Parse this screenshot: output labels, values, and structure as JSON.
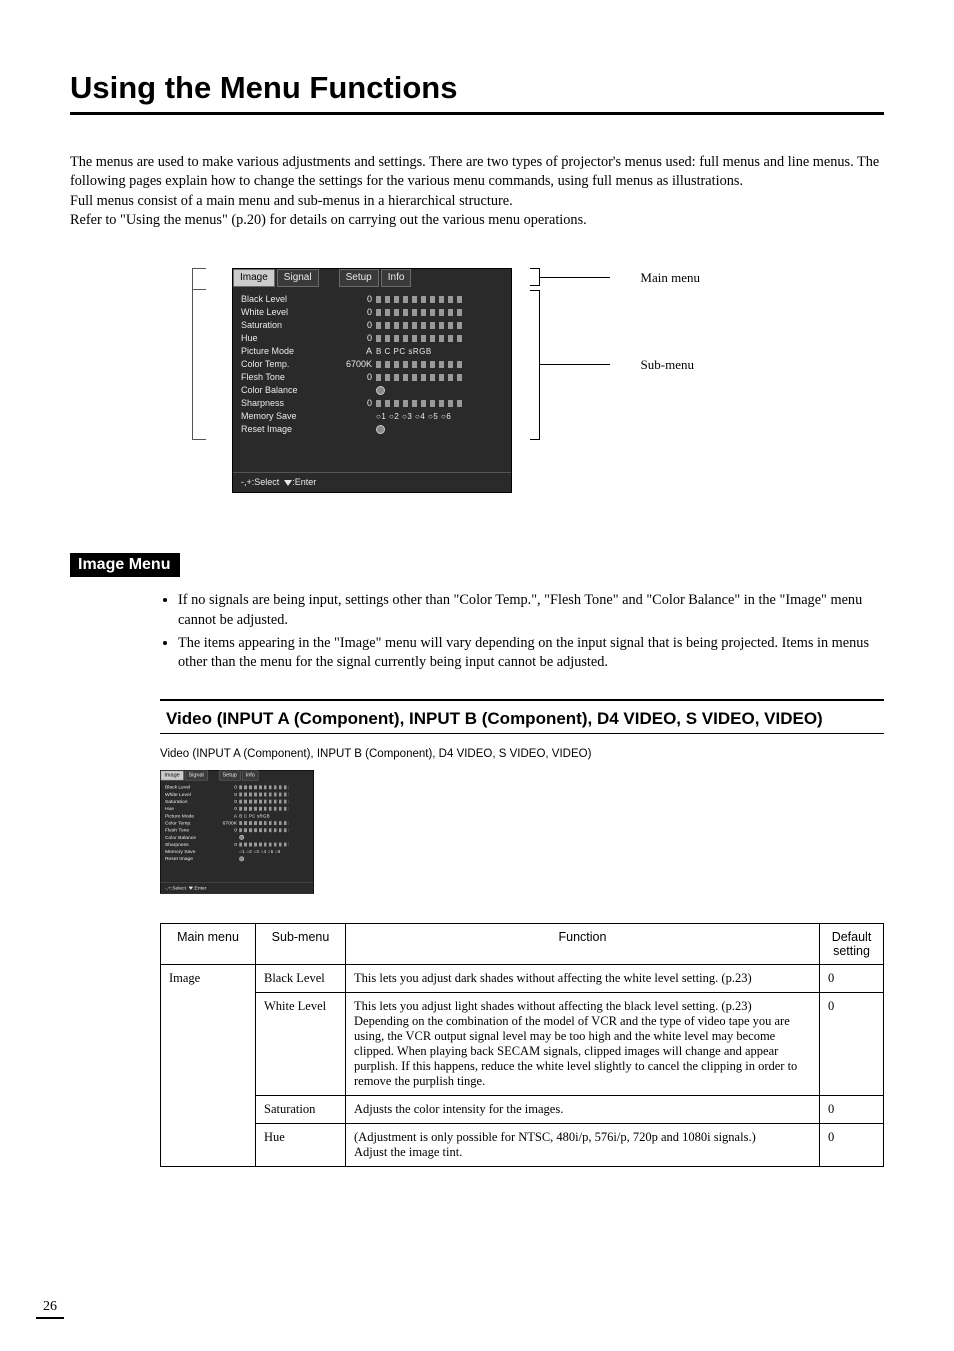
{
  "title": "Using the Menu Functions",
  "intro_lines": [
    "The menus are used to make various adjustments and settings. There are two types of projector's menus used: full menus and line menus. The following pages explain how to change the settings for the various menu commands, using full menus as illustrations.",
    "Full menus consist of a main menu and sub-menus in a hierarchical structure.",
    "Refer to \"Using the menus\" (p.20) for details on carrying out the various menu operations."
  ],
  "diagram": {
    "tabs": [
      "Image",
      "Signal",
      "Setup",
      "Info"
    ],
    "rows": [
      {
        "label": "Black Level",
        "val": "0",
        "bar": true
      },
      {
        "label": "White Level",
        "val": "0",
        "bar": true
      },
      {
        "label": "Saturation",
        "val": "0",
        "bar": true
      },
      {
        "label": "Hue",
        "val": "0",
        "bar": true
      },
      {
        "label": "Picture Mode",
        "val": "A",
        "opts": "B   C   PC  sRGB"
      },
      {
        "label": "Color Temp.",
        "val": "6700K",
        "bar": true
      },
      {
        "label": "Flesh Tone",
        "val": "0",
        "bar": true
      },
      {
        "label": "Color Balance",
        "val": "",
        "icon": true
      },
      {
        "label": "Sharpness",
        "val": "0",
        "bar": true
      },
      {
        "label": "Memory Save",
        "val": "",
        "opts": "○1 ○2 ○3 ○4 ○5 ○6"
      },
      {
        "label": "Reset Image",
        "val": "",
        "icon": true
      }
    ],
    "footer": "-,+:Select   ▼:Enter",
    "callout_main": "Main menu",
    "callout_sub": "Sub-menu"
  },
  "image_menu": {
    "badge": "Image Menu",
    "bullets": [
      "If no signals are being input, settings other than \"Color Temp.\", \"Flesh Tone\" and \"Color Balance\" in the \"Image\" menu cannot be adjusted.",
      "The items appearing in the \"Image\" menu will vary depending on the input signal that is being projected. Items in menus other than the menu for the signal currently being input cannot be adjusted."
    ]
  },
  "video_section": {
    "heading": "Video (INPUT A (Component), INPUT B (Component), D4 VIDEO, S VIDEO, VIDEO)",
    "caption": "Video (INPUT A (Component), INPUT B (Component), D4 VIDEO, S VIDEO, VIDEO)"
  },
  "table": {
    "headers": [
      "Main menu",
      "Sub-menu",
      "Function",
      "Default setting"
    ],
    "col_widths": [
      "95px",
      "90px",
      "auto",
      "64px"
    ],
    "rows": [
      {
        "main": "Image",
        "sub": "Black Level",
        "func": "This lets you adjust dark shades without affecting the white level setting. (p.23)",
        "def": "0",
        "first": true
      },
      {
        "main": "",
        "sub": "White Level",
        "func": "This lets you adjust light shades without affecting the black level setting. (p.23)\nDepending on the combination of the model of VCR and the type of video tape you are using, the VCR output signal level may be too high and the white level may become clipped. When playing back SECAM signals, clipped images will change and appear purplish. If this happens, reduce the white level slightly to cancel the clipping in order to remove the purplish tinge.",
        "def": "0"
      },
      {
        "main": "",
        "sub": "Saturation",
        "func": "Adjusts the color intensity for the images.",
        "def": "0"
      },
      {
        "main": "",
        "sub": "Hue",
        "func": "(Adjustment is only possible for NTSC, 480i/p, 576i/p, 720p and 1080i signals.)\nAdjust the image tint.",
        "def": "0"
      }
    ]
  },
  "page_number": "26"
}
